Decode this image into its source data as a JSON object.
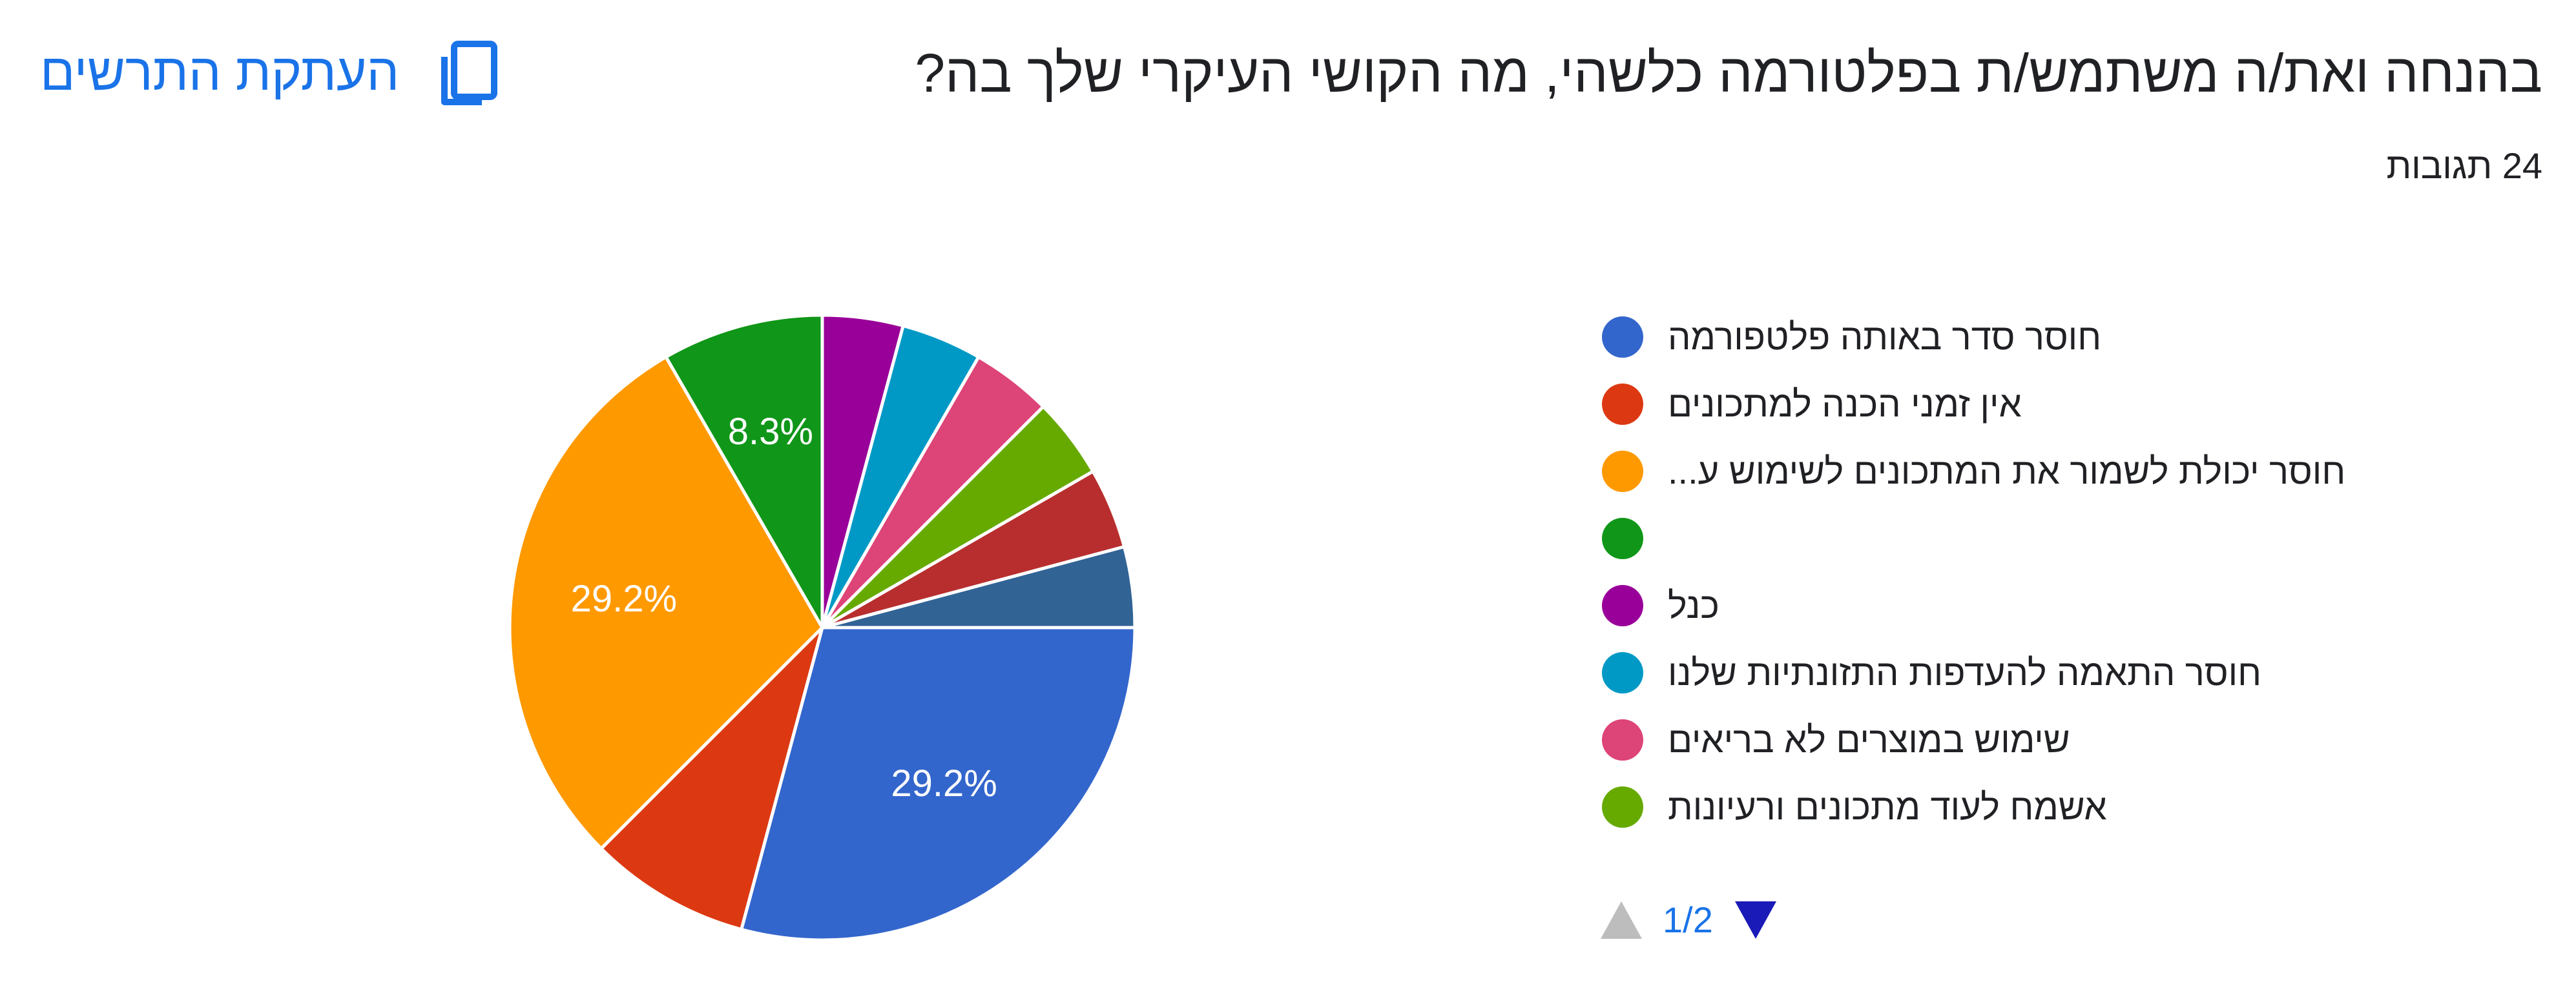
{
  "header": {
    "title": "בהנחה ואת/ה משתמש/ת בפלטורמה כלשהי, מה הקושי העיקרי שלך בה?",
    "response_count": "24 תגובות",
    "copy_chart_label": "העתקת התרשים"
  },
  "chart_data": {
    "type": "pie",
    "title": "",
    "total_responses": 24,
    "series": [
      {
        "name": "חוסר סדר באותה פלטפורמה",
        "value": 7,
        "percent": 29.2,
        "label": "29.2%",
        "color": "#3366cc"
      },
      {
        "name": "אין זמני הכנה למתכונים",
        "value": 2,
        "percent": 8.3,
        "label": "",
        "color": "#dc3912"
      },
      {
        "name": "חוסר יכולת לשמור את המתכונים לשימוש ע...",
        "value": 7,
        "percent": 29.2,
        "label": "29.2%",
        "color": "#ff9900"
      },
      {
        "name": "",
        "value": 2,
        "percent": 8.3,
        "label": "8.3%",
        "color": "#109618"
      },
      {
        "name": "כנל",
        "value": 1,
        "percent": 4.2,
        "label": "",
        "color": "#990099"
      },
      {
        "name": "חוסר התאמה להעדפות התזונתיות שלנו",
        "value": 1,
        "percent": 4.2,
        "label": "",
        "color": "#0099c6"
      },
      {
        "name": "שימוש במוצרים לא בריאים",
        "value": 1,
        "percent": 4.2,
        "label": "",
        "color": "#dd4477"
      },
      {
        "name": "אשמח לעוד מתכונים ורעיונות",
        "value": 1,
        "percent": 4.2,
        "label": "",
        "color": "#66aa00"
      },
      {
        "name": "",
        "value": 1,
        "percent": 4.2,
        "label": "",
        "color": "#b82e2e"
      },
      {
        "name": "",
        "value": 1,
        "percent": 4.2,
        "label": "",
        "color": "#316395"
      }
    ],
    "legend_visible_count": 8,
    "legend_position": "right",
    "start_angle": "3 o'clock",
    "direction": "clockwise"
  },
  "legend": {
    "pager_text": "1/2",
    "prev_icon": "triangle-up-icon",
    "next_icon": "triangle-down-icon",
    "prev_color": "#bdbdbd",
    "next_color": "#1a1ab8"
  },
  "icons": {
    "copy": "copy-chart-icon"
  },
  "colors": {
    "accent": "#1a73e8",
    "text": "#202124",
    "background": "#ffffff"
  }
}
